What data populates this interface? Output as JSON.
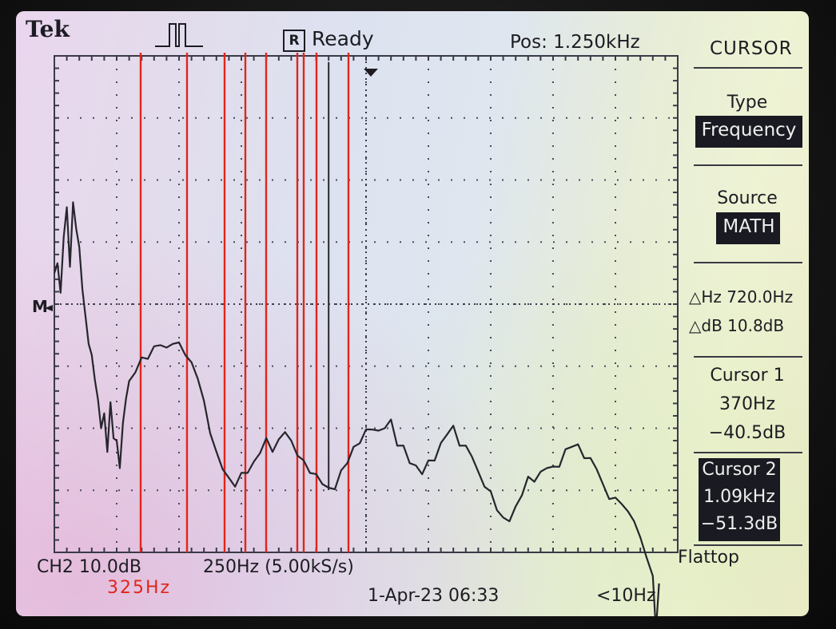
{
  "header": {
    "brand": "Tek",
    "trigger_state_badge": "R",
    "trigger_state": "Ready",
    "position": "Pos: 1.250kHz"
  },
  "menu": {
    "title": "CURSOR",
    "type_label": "Type",
    "type_value": "Frequency",
    "source_label": "Source",
    "source_value": "MATH",
    "delta_hz": "△Hz 720.0Hz",
    "delta_db": "△dB 10.8dB",
    "cursor1_label": "Cursor 1",
    "cursor1_freq": "370Hz",
    "cursor1_db": "−40.5dB",
    "cursor2_label": "Cursor 2",
    "cursor2_freq": "1.09kHz",
    "cursor2_db": "−51.3dB",
    "window": "Flattop"
  },
  "footer": {
    "channel_scale": "CH2 10.0dB",
    "freq_scale": "250Hz (5.00kS/s)",
    "date": "1-Apr-23 06:33",
    "trigger_freq": "<10Hz"
  },
  "graticule": {
    "marker": "M",
    "x_divisions": 10,
    "y_divisions": 8
  },
  "annotation": {
    "text": "325Hz",
    "color": "#e0261b"
  },
  "trace": {
    "color": "#26262c",
    "points_db_div": [
      [
        0.0,
        4.3
      ],
      [
        0.05,
        4.5
      ],
      [
        0.1,
        3.9
      ],
      [
        0.15,
        4.9
      ],
      [
        0.2,
        5.3
      ],
      [
        0.25,
        4.4
      ],
      [
        0.3,
        5.4
      ],
      [
        0.35,
        5.1
      ],
      [
        0.4,
        4.7
      ],
      [
        0.45,
        4.1
      ],
      [
        0.5,
        3.6
      ],
      [
        0.55,
        3.2
      ],
      [
        0.6,
        2.9
      ],
      [
        0.65,
        2.6
      ],
      [
        0.7,
        2.2
      ],
      [
        0.75,
        1.8
      ],
      [
        0.8,
        2.0
      ],
      [
        0.85,
        1.5
      ],
      [
        0.9,
        2.2
      ],
      [
        0.95,
        1.7
      ],
      [
        1.0,
        1.6
      ],
      [
        1.05,
        1.2
      ],
      [
        1.1,
        1.8
      ],
      [
        1.15,
        2.3
      ],
      [
        1.2,
        2.5
      ],
      [
        1.3,
        2.7
      ],
      [
        1.4,
        2.9
      ],
      [
        1.5,
        3.0
      ],
      [
        1.6,
        3.1
      ],
      [
        1.7,
        3.2
      ],
      [
        1.8,
        3.1
      ],
      [
        1.9,
        3.2
      ],
      [
        2.0,
        3.1
      ],
      [
        2.1,
        3.0
      ],
      [
        2.2,
        2.8
      ],
      [
        2.3,
        2.6
      ],
      [
        2.4,
        2.2
      ],
      [
        2.5,
        1.8
      ],
      [
        2.6,
        1.4
      ],
      [
        2.7,
        1.2
      ],
      [
        2.8,
        1.0
      ],
      [
        2.9,
        0.9
      ],
      [
        3.0,
        1.0
      ],
      [
        3.1,
        1.1
      ],
      [
        3.2,
        1.2
      ],
      [
        3.3,
        1.4
      ],
      [
        3.4,
        1.6
      ],
      [
        3.5,
        1.5
      ],
      [
        3.6,
        1.6
      ],
      [
        3.7,
        1.8
      ],
      [
        3.8,
        1.6
      ],
      [
        3.9,
        1.4
      ],
      [
        4.0,
        1.2
      ],
      [
        4.1,
        1.1
      ],
      [
        4.2,
        1.0
      ],
      [
        4.3,
        0.9
      ],
      [
        4.4,
        0.8
      ],
      [
        4.5,
        0.9
      ],
      [
        4.6,
        1.1
      ],
      [
        4.7,
        1.3
      ],
      [
        4.8,
        1.5
      ],
      [
        4.9,
        1.6
      ],
      [
        5.0,
        1.7
      ],
      [
        5.1,
        1.8
      ],
      [
        5.2,
        1.7
      ],
      [
        5.3,
        1.8
      ],
      [
        5.4,
        1.9
      ],
      [
        5.5,
        1.6
      ],
      [
        5.6,
        1.5
      ],
      [
        5.7,
        1.3
      ],
      [
        5.8,
        1.2
      ],
      [
        5.9,
        1.1
      ],
      [
        6.0,
        1.2
      ],
      [
        6.1,
        1.3
      ],
      [
        6.2,
        1.5
      ],
      [
        6.3,
        1.7
      ],
      [
        6.4,
        1.8
      ],
      [
        6.5,
        1.6
      ],
      [
        6.6,
        1.5
      ],
      [
        6.7,
        1.4
      ],
      [
        6.8,
        1.1
      ],
      [
        6.9,
        0.9
      ],
      [
        7.0,
        0.7
      ],
      [
        7.1,
        0.5
      ],
      [
        7.2,
        0.3
      ],
      [
        7.3,
        0.3
      ],
      [
        7.4,
        0.5
      ],
      [
        7.5,
        0.8
      ],
      [
        7.6,
        1.0
      ],
      [
        7.7,
        1.0
      ],
      [
        7.8,
        1.1
      ],
      [
        7.9,
        1.2
      ],
      [
        8.0,
        1.1
      ],
      [
        8.1,
        1.2
      ],
      [
        8.2,
        1.4
      ],
      [
        8.3,
        1.5
      ],
      [
        8.4,
        1.5
      ],
      [
        8.5,
        1.4
      ],
      [
        8.6,
        1.3
      ],
      [
        8.7,
        1.2
      ],
      [
        8.8,
        0.9
      ],
      [
        8.9,
        0.7
      ],
      [
        9.0,
        0.6
      ],
      [
        9.1,
        0.6
      ],
      [
        9.2,
        0.4
      ],
      [
        9.3,
        0.3
      ],
      [
        9.4,
        0.0
      ],
      [
        9.5,
        -0.2
      ],
      [
        9.6,
        -0.6
      ],
      [
        9.65,
        -1.4
      ],
      [
        9.7,
        -0.7
      ]
    ],
    "cursor_x_div": 4.4,
    "spike_x_div": 4.4,
    "spike_top_div": 7.7
  }
}
